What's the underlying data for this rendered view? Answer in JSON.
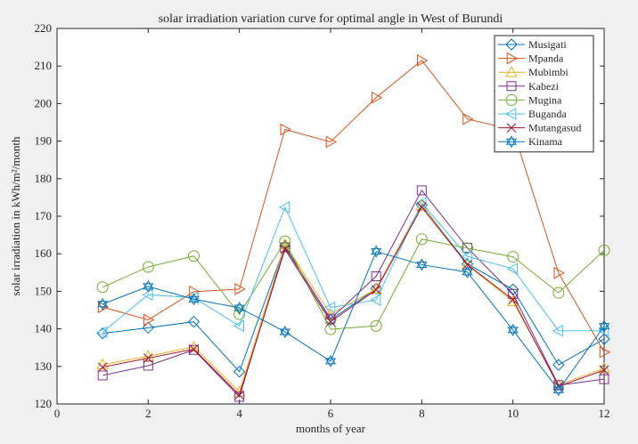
{
  "chart_data": {
    "type": "line",
    "title": "solar irradiation variation curve for optimal angle in West of Burundi",
    "xlabel": "months of year",
    "ylabel": "solar irradiation in kWh/m²/month",
    "xlim": [
      0,
      12
    ],
    "ylim": [
      120,
      220
    ],
    "xticks": [
      0,
      2,
      4,
      6,
      8,
      10,
      12
    ],
    "yticks": [
      120,
      130,
      140,
      150,
      160,
      170,
      180,
      190,
      200,
      210,
      220
    ],
    "grid": false,
    "legend_position": "top-right",
    "x": [
      1,
      2,
      3,
      4,
      5,
      6,
      7,
      8,
      9,
      10,
      11,
      12
    ],
    "series": [
      {
        "name": "Musigati",
        "color": "#0072bd",
        "marker": "diamond",
        "values": [
          138.8,
          140.3,
          141.9,
          128.6,
          162.1,
          142.4,
          150.7,
          173.0,
          157.3,
          150.5,
          130.4,
          137.3
        ]
      },
      {
        "name": "Mpanda",
        "color": "#d95319",
        "marker": "triangle-right",
        "values": [
          145.8,
          142.4,
          149.9,
          150.6,
          193.1,
          189.8,
          201.6,
          211.5,
          195.9,
          193.0,
          154.9,
          133.8
        ]
      },
      {
        "name": "Mubimbi",
        "color": "#edb120",
        "marker": "triangle-up",
        "values": [
          130.5,
          132.7,
          135.2,
          123.2,
          162.5,
          143.9,
          150.6,
          172.9,
          157.0,
          147.3,
          125.1,
          129.5
        ]
      },
      {
        "name": "Kabezi",
        "color": "#7e2f8e",
        "marker": "square",
        "values": [
          127.6,
          130.2,
          134.4,
          121.9,
          161.7,
          142.7,
          154.0,
          176.9,
          161.6,
          149.3,
          125.0,
          126.6
        ]
      },
      {
        "name": "Mugina",
        "color": "#77ac30",
        "marker": "circle",
        "values": [
          151.1,
          156.5,
          159.4,
          143.9,
          163.3,
          139.9,
          140.8,
          163.9,
          161.5,
          159.2,
          149.6,
          160.9
        ]
      },
      {
        "name": "Buganda",
        "color": "#4dbeee",
        "marker": "triangle-left",
        "values": [
          139.1,
          149.1,
          148.3,
          140.8,
          172.4,
          145.7,
          147.7,
          173.5,
          159.3,
          156.0,
          139.5,
          139.5
        ]
      },
      {
        "name": "Mutangasud",
        "color": "#a2142f",
        "marker": "x",
        "values": [
          129.8,
          132.2,
          134.6,
          122.4,
          161.2,
          141.9,
          150.4,
          172.4,
          157.1,
          147.8,
          124.7,
          129.0
        ]
      },
      {
        "name": "Kinama",
        "color": "#0072bd",
        "marker": "hexagram",
        "values": [
          146.6,
          151.3,
          147.9,
          145.6,
          139.2,
          131.4,
          160.6,
          157.1,
          155.1,
          139.7,
          123.7,
          140.7
        ]
      }
    ]
  }
}
